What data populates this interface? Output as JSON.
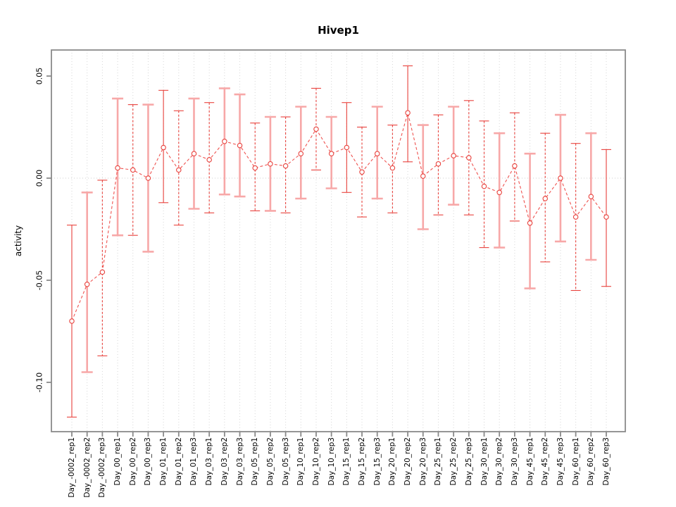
{
  "title": "Hivep1",
  "y_axis": {
    "label": "activity",
    "tick_labels": [
      "0.05",
      "0.00",
      "-0.05",
      "-0.10"
    ],
    "tick_values": [
      0.05,
      0.0,
      -0.05,
      -0.1
    ]
  },
  "chart_data": {
    "type": "scatter",
    "title": "Hivep1",
    "xlabel": "",
    "ylabel": "activity",
    "ylim": [
      -0.124,
      0.063
    ],
    "legend_position": "none",
    "grid": "dotted vertical gridline at every category; dotted horizontal line at y=0",
    "marker": "open red circles connected by dashed red line, vertical error bars with end caps",
    "categories": [
      "Day_-0002_rep1",
      "Day_-0002_rep2",
      "Day_-0002_rep3",
      "Day_00_rep1",
      "Day_00_rep2",
      "Day_00_rep3",
      "Day_01_rep1",
      "Day_01_rep2",
      "Day_01_rep3",
      "Day_03_rep1",
      "Day_03_rep2",
      "Day_03_rep3",
      "Day_05_rep1",
      "Day_05_rep2",
      "Day_05_rep3",
      "Day_10_rep1",
      "Day_10_rep2",
      "Day_10_rep3",
      "Day_15_rep1",
      "Day_15_rep2",
      "Day_15_rep3",
      "Day_20_rep1",
      "Day_20_rep2",
      "Day_20_rep3",
      "Day_25_rep1",
      "Day_25_rep2",
      "Day_25_rep3",
      "Day_30_rep1",
      "Day_30_rep2",
      "Day_30_rep3",
      "Day_45_rep1",
      "Day_45_rep2",
      "Day_45_rep3",
      "Day_60_rep1",
      "Day_60_rep2",
      "Day_60_rep3"
    ],
    "series": [
      {
        "name": "activity",
        "values": [
          -0.07,
          -0.052,
          -0.046,
          0.005,
          0.004,
          0.0,
          0.015,
          0.004,
          0.012,
          0.009,
          0.018,
          0.016,
          0.005,
          0.007,
          0.006,
          0.012,
          0.024,
          0.012,
          0.015,
          0.003,
          0.012,
          0.005,
          0.032,
          0.001,
          0.007,
          0.011,
          0.01,
          -0.004,
          -0.007,
          0.006,
          -0.022,
          -0.01,
          0.0,
          -0.019,
          -0.009,
          -0.019
        ],
        "lower": [
          -0.117,
          -0.095,
          -0.087,
          -0.028,
          -0.028,
          -0.036,
          -0.012,
          -0.023,
          -0.015,
          -0.017,
          -0.008,
          -0.009,
          -0.016,
          -0.016,
          -0.017,
          -0.01,
          0.004,
          -0.005,
          -0.007,
          -0.019,
          -0.01,
          -0.017,
          0.008,
          -0.025,
          -0.018,
          -0.013,
          -0.018,
          -0.034,
          -0.034,
          -0.021,
          -0.054,
          -0.041,
          -0.031,
          -0.055,
          -0.04,
          -0.053
        ],
        "upper": [
          -0.023,
          -0.007,
          -0.001,
          0.039,
          0.036,
          0.036,
          0.043,
          0.033,
          0.039,
          0.037,
          0.044,
          0.041,
          0.027,
          0.03,
          0.03,
          0.035,
          0.044,
          0.03,
          0.037,
          0.025,
          0.035,
          0.026,
          0.055,
          0.026,
          0.031,
          0.035,
          0.038,
          0.028,
          0.022,
          0.032,
          0.012,
          0.022,
          0.031,
          0.017,
          0.022,
          0.014
        ],
        "bar_styles": [
          "solid",
          "pink",
          "dashed",
          "pink",
          "dashed",
          "pink",
          "solid",
          "dashed",
          "pink",
          "dashed",
          "pink",
          "pink",
          "dashed",
          "pink",
          "dashed",
          "pink",
          "dashed",
          "pink",
          "solid",
          "dashed",
          "pink",
          "dashed",
          "solid",
          "pink",
          "dashed",
          "pink",
          "dashed",
          "dashed",
          "pink",
          "dashed",
          "pink",
          "dashed",
          "pink",
          "dashed",
          "pink",
          "solid"
        ]
      }
    ]
  },
  "colors": {
    "point_red": "#e8413c",
    "line_red": "#ef5350",
    "error_pink": "#f7a8a8",
    "gridline": "#d6d6d6",
    "zero_line": "#cfcfcf",
    "frame": "#8a8a8a",
    "text": "#000000"
  }
}
